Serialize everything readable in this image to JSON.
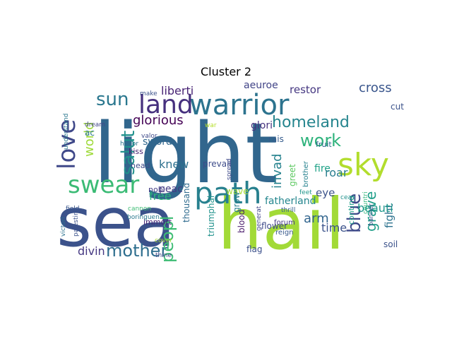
{
  "figure": {
    "title": "Cluster 2",
    "background": "#ffffff",
    "palette": "viridis"
  },
  "words": [
    {
      "text": "light",
      "color": "#31668d"
    },
    {
      "text": "sea",
      "color": "#3b528b"
    },
    {
      "text": "hail",
      "color": "#a2da37"
    },
    {
      "text": "path",
      "color": "#27808e"
    },
    {
      "text": "warrior",
      "color": "#2c738e"
    },
    {
      "text": "land",
      "color": "#46307e"
    },
    {
      "text": "sky",
      "color": "#b2dd2d"
    },
    {
      "text": "swear",
      "color": "#3bbb75"
    },
    {
      "text": "love",
      "color": "#3f4889"
    },
    {
      "text": "sun",
      "color": "#2a778e"
    },
    {
      "text": "homeland",
      "color": "#25858e"
    },
    {
      "text": "salut",
      "color": "#21918c"
    },
    {
      "text": "blue",
      "color": "#3e4989"
    },
    {
      "text": "work",
      "color": "#2eb37c"
    },
    {
      "text": "mother",
      "color": "#2e6e8e"
    },
    {
      "text": "peopl",
      "color": "#3dbc74"
    },
    {
      "text": "glorious",
      "color": "#440154"
    },
    {
      "text": "fatherland",
      "color": "#24868e"
    },
    {
      "text": "fight",
      "color": "#2c728e"
    },
    {
      "text": "liberti",
      "color": "#482374"
    },
    {
      "text": "aeuroe",
      "color": "#414487"
    },
    {
      "text": "restor",
      "color": "#453781"
    },
    {
      "text": "cross",
      "color": "#39558c"
    },
    {
      "text": "glori",
      "color": "#46327e"
    },
    {
      "text": "world",
      "color": "#9fda3a"
    },
    {
      "text": "sword",
      "color": "#31688e"
    },
    {
      "text": "knew",
      "color": "#2d708e"
    },
    {
      "text": "time",
      "color": "#3b528b"
    },
    {
      "text": "arm",
      "color": "#32658e"
    },
    {
      "text": "beauti",
      "color": "#1f988b"
    },
    {
      "text": "fire",
      "color": "#1fa287"
    },
    {
      "text": "invad",
      "color": "#26828e"
    },
    {
      "text": "roar",
      "color": "#287d8e"
    },
    {
      "text": "free",
      "color": "#2fb47c"
    },
    {
      "text": "divin",
      "color": "#453882"
    },
    {
      "text": "grave",
      "color": "#1f9e89"
    },
    {
      "text": "eye",
      "color": "#3b528b"
    },
    {
      "text": "ac",
      "color": "#2a778e"
    },
    {
      "text": "greet",
      "color": "#5ec962"
    },
    {
      "text": "peac",
      "color": "#443983"
    },
    {
      "text": "prevail",
      "color": "#3e4c8a"
    },
    {
      "text": "nobl",
      "color": "#433e85"
    },
    {
      "text": "rais",
      "color": "#365c8d"
    },
    {
      "text": "cut",
      "color": "#3b528b"
    },
    {
      "text": "soil",
      "color": "#3b528b"
    },
    {
      "text": "fruit",
      "color": "#31678e"
    },
    {
      "text": "wave",
      "color": "#a8db34"
    },
    {
      "text": "brother",
      "color": "#26818e"
    },
    {
      "text": "thousand",
      "color": "#2f6b8e"
    },
    {
      "text": "triumphal",
      "color": "#20928c"
    },
    {
      "text": "blood",
      "color": "#48186a"
    },
    {
      "text": "flower",
      "color": "#3e4a89"
    },
    {
      "text": "continu",
      "color": "#1f9e89"
    },
    {
      "text": "immort",
      "color": "#482576"
    },
    {
      "text": "head",
      "color": "#3e4c8a"
    },
    {
      "text": "kiss",
      "color": "#482071"
    },
    {
      "text": "grow",
      "color": "#26818e"
    },
    {
      "text": "flag",
      "color": "#3c508b"
    },
    {
      "text": "spread",
      "color": "#3e4989"
    },
    {
      "text": "reign",
      "color": "#38598c"
    },
    {
      "text": "forum",
      "color": "#443983"
    },
    {
      "text": "dream",
      "color": "#404588"
    },
    {
      "text": "honor",
      "color": "#2c738e"
    },
    {
      "text": "make",
      "color": "#3b528b"
    },
    {
      "text": "valor",
      "color": "#3e4989"
    },
    {
      "text": "war",
      "color": "#b5de2b"
    },
    {
      "text": "understand",
      "color": "#2a778e"
    },
    {
      "text": "field",
      "color": "#39568c"
    },
    {
      "text": "cannon",
      "color": "#3dbc74"
    },
    {
      "text": "victori",
      "color": "#2c728e"
    },
    {
      "text": "palestin",
      "color": "#3b528b"
    },
    {
      "text": "boringuen",
      "color": "#2a788e"
    },
    {
      "text": "cover",
      "color": "#a5db36"
    },
    {
      "text": "thine",
      "color": "#3f4788"
    },
    {
      "text": "generat",
      "color": "#404688"
    },
    {
      "text": "feet",
      "color": "#1f968b"
    },
    {
      "text": "thrill",
      "color": "#355f8d"
    },
    {
      "text": "ceas",
      "color": "#21918c"
    },
    {
      "text": "countri",
      "color": "#31b57b"
    },
    {
      "text": "banner",
      "color": "#3b528b"
    }
  ]
}
